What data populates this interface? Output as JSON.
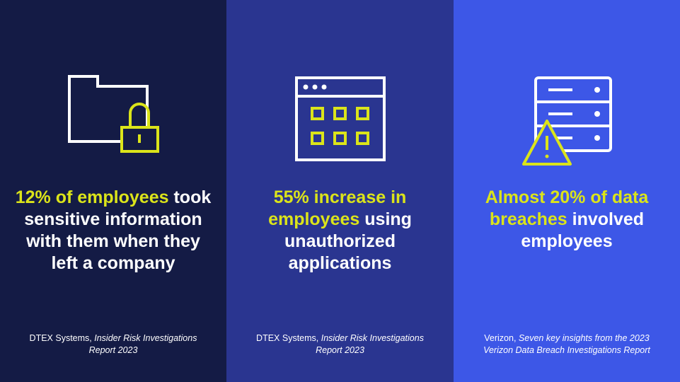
{
  "panels": [
    {
      "highlight": "12% of employees",
      "text": "took sensitive information with them when they left a company",
      "source_name": "DTEX Systems,",
      "source_title": "Insider Risk Investigations Report 2023"
    },
    {
      "highlight": "55% increase in employees",
      "text": "using unauthorized applications",
      "source_name": "DTEX Systems,",
      "source_title": "Insider Risk Investigations Report 2023"
    },
    {
      "highlight": "Almost 20% of data breaches",
      "text": "involved employees",
      "source_name": "Verizon,",
      "source_title": "Seven key insights from the 2023 Verizon Data Breach Investigations Report"
    }
  ]
}
